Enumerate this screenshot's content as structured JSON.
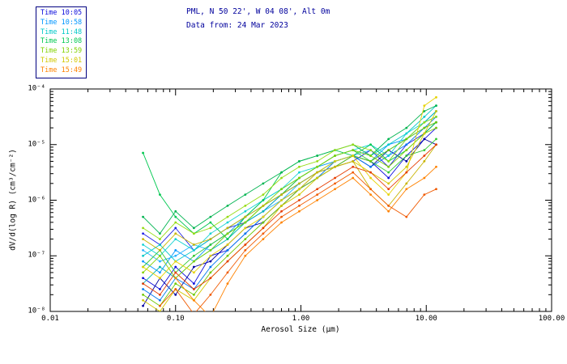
{
  "header": {
    "line1": "PML, N 50 22', W 04 08', Alt 0m",
    "line2": "Data from: 24 Mar 2023",
    "color": "#00009c"
  },
  "legend": {
    "entries": [
      {
        "label": "Time 10:05",
        "color": "#0a0adc"
      },
      {
        "label": "Time 10:58",
        "color": "#0096ff"
      },
      {
        "label": "Time 11:48",
        "color": "#00c8c8"
      },
      {
        "label": "Time 13:08",
        "color": "#00c850"
      },
      {
        "label": "Time 13:59",
        "color": "#82d200"
      },
      {
        "label": "Time 15:01",
        "color": "#d2c800"
      },
      {
        "label": "Time 15:49",
        "color": "#ff8200"
      }
    ]
  },
  "chart_data": {
    "type": "line",
    "title": "PML, N 50 22', W 04 08', Alt 0m",
    "subtitle": "Data from: 24 Mar 2023",
    "xlabel": "Aerosol Size (μm)",
    "ylabel": "dV/d(log R) (cm³/cm⁻²)",
    "x_scale": "log",
    "y_scale": "log",
    "xlim": [
      0.01,
      100.0
    ],
    "ylim": [
      1e-08,
      0.0001
    ],
    "x_tick_labels": [
      "0.01",
      "0.10",
      "1.00",
      "10.00",
      "100.00"
    ],
    "y_tick_labels": [
      "10⁻⁸",
      "10⁻⁷",
      "10⁻⁶",
      "10⁻⁵",
      "10⁻⁴"
    ],
    "grid": false,
    "legend_position": "top-left",
    "marker": "dot",
    "note": "y_log10 arrays give log10 of dV/d(log R); null = no sample at that size",
    "x": [
      0.055,
      0.075,
      0.1,
      0.14,
      0.19,
      0.26,
      0.36,
      0.5,
      0.7,
      0.97,
      1.35,
      1.87,
      2.6,
      3.6,
      5.0,
      6.95,
      9.65,
      12.0
    ],
    "series": [
      {
        "name": "Time 10:05 (1)",
        "time": "10:05",
        "color": "#0a0adc",
        "y_log10": [
          -7.4,
          -7.6,
          -7.2,
          -7.5,
          -7.0,
          -6.9,
          -6.6,
          -6.3,
          -6.0,
          -5.8,
          -5.6,
          -5.4,
          -5.2,
          -5.3,
          -5.6,
          -5.2,
          -4.9,
          -4.7
        ]
      },
      {
        "name": "Time 10:05 (2)",
        "time": "10:05",
        "color": "#2222e6",
        "y_log10": [
          -6.6,
          -6.8,
          -6.5,
          -6.9,
          -6.7,
          -6.5,
          -6.4,
          -6.2,
          -5.9,
          -5.7,
          -5.5,
          -5.4,
          -5.3,
          -5.1,
          -5.4,
          -5.0,
          -4.8,
          -4.6
        ]
      },
      {
        "name": "Time 10:05 (3)",
        "time": "10:05",
        "color": "#0000a0",
        "y_log10": [
          -7.9,
          -7.4,
          -7.7,
          -7.2,
          -7.1,
          -6.8,
          -6.5,
          -6.4,
          -6.1,
          -5.8,
          -5.5,
          -5.3,
          -5.2,
          -5.4,
          -5.1,
          -5.3,
          -4.9,
          -5.0
        ]
      },
      {
        "name": "Time 10:58 (1)",
        "time": "10:58",
        "color": "#0096ff",
        "y_log10": [
          -7.1,
          -7.3,
          -6.9,
          -7.1,
          -6.8,
          -6.6,
          -6.3,
          -6.1,
          -5.9,
          -5.6,
          -5.4,
          -5.3,
          -5.2,
          -5.3,
          -5.0,
          -4.9,
          -4.6,
          -4.4
        ]
      },
      {
        "name": "Time 10:58 (2)",
        "time": "10:58",
        "color": "#0078f0",
        "y_log10": [
          -7.6,
          -7.8,
          -7.4,
          -7.6,
          -7.2,
          -6.9,
          -6.6,
          -6.3,
          -6.0,
          -5.8,
          -5.6,
          -5.3,
          -5.2,
          -5.4,
          -5.2,
          -5.0,
          -4.7,
          -4.5
        ]
      },
      {
        "name": "Time 10:58 (3)",
        "time": "10:58",
        "color": "#28b4ff",
        "y_log10": [
          -6.9,
          -7.1,
          -7.0,
          -6.8,
          -6.9,
          -6.6,
          -6.4,
          -6.2,
          -6.0,
          -5.7,
          -5.5,
          -5.4,
          -5.2,
          -5.1,
          -5.3,
          -4.9,
          -4.7,
          -4.6
        ]
      },
      {
        "name": "Time 11:48 (1)",
        "time": "11:48",
        "color": "#00c8c8",
        "y_log10": [
          -7.0,
          -6.8,
          -7.1,
          -6.9,
          -6.7,
          -6.5,
          -6.3,
          -6.0,
          -5.8,
          -5.6,
          -5.4,
          -5.2,
          -5.1,
          -5.2,
          -5.0,
          -4.8,
          -4.5,
          -4.3
        ]
      },
      {
        "name": "Time 11:48 (2)",
        "time": "11:48",
        "color": "#00b4b4",
        "y_log10": [
          -7.5,
          -7.2,
          -7.4,
          -7.1,
          -6.9,
          -6.7,
          -6.4,
          -6.2,
          -5.9,
          -5.7,
          -5.5,
          -5.3,
          -5.2,
          -5.3,
          -5.1,
          -4.9,
          -4.6,
          -4.4
        ]
      },
      {
        "name": "Time 11:48 (3)",
        "time": "11:48",
        "color": "#14d2d2",
        "y_log10": [
          -6.8,
          -7.0,
          -6.7,
          -6.9,
          -6.6,
          -6.4,
          -6.2,
          -6.0,
          -5.8,
          -5.5,
          -5.4,
          -5.2,
          -5.1,
          -5.0,
          -5.2,
          -4.8,
          -4.6,
          -4.5
        ]
      },
      {
        "name": "Time 13:08 (1)",
        "time": "13:08",
        "color": "#00c850",
        "y_log10": [
          -5.15,
          -5.9,
          -6.3,
          -6.6,
          -6.4,
          -6.7,
          -6.3,
          -6.0,
          -5.5,
          -5.3,
          -5.2,
          -5.1,
          -5.2,
          -5.0,
          -5.3,
          -5.1,
          -4.8,
          -4.6
        ]
      },
      {
        "name": "Time 13:08 (2)",
        "time": "13:08",
        "color": "#00b450",
        "y_log10": [
          -6.3,
          -6.6,
          -6.2,
          -6.5,
          -6.3,
          -6.1,
          -5.9,
          -5.7,
          -5.5,
          -5.3,
          -5.2,
          -5.1,
          -5.0,
          -5.2,
          -4.9,
          -4.7,
          -4.4,
          -4.3
        ]
      },
      {
        "name": "Time 13:08 (3)",
        "time": "13:08",
        "color": "#32c832",
        "y_log10": [
          -7.2,
          -6.9,
          -7.3,
          -7.0,
          -6.8,
          -6.6,
          -6.4,
          -6.1,
          -5.9,
          -5.6,
          -5.4,
          -5.2,
          -5.1,
          -5.3,
          -5.5,
          -5.2,
          -5.1,
          -4.9
        ]
      },
      {
        "name": "Time 13:59 (1)",
        "time": "13:59",
        "color": "#82d200",
        "y_log10": [
          -7.3,
          -7.0,
          -7.4,
          -7.1,
          -6.9,
          -6.6,
          -6.4,
          -6.1,
          -5.8,
          -5.6,
          -5.4,
          -5.2,
          -5.1,
          -5.2,
          -5.4,
          -5.1,
          -4.8,
          -4.7
        ]
      },
      {
        "name": "Time 13:59 (2)",
        "time": "13:59",
        "color": "#96dc14",
        "y_log10": [
          -6.5,
          -6.7,
          -6.4,
          -6.6,
          -6.5,
          -6.3,
          -6.1,
          -5.9,
          -5.6,
          -5.4,
          -5.3,
          -5.1,
          -5.0,
          -5.1,
          -5.3,
          -4.9,
          -4.6,
          -4.5
        ]
      },
      {
        "name": "Time 13:59 (3)",
        "time": "13:59",
        "color": "#6ec800",
        "y_log10": [
          -7.7,
          -7.9,
          -7.5,
          -7.7,
          -7.3,
          -7.0,
          -6.7,
          -6.4,
          -6.1,
          -5.8,
          -5.6,
          -5.4,
          -5.2,
          -5.3,
          -5.1,
          -4.9,
          -4.7,
          -4.6
        ]
      },
      {
        "name": "Time 15:01 (1)",
        "time": "15:01",
        "color": "#d2c800",
        "y_log10": [
          -7.8,
          -8.0,
          -7.6,
          -7.8,
          -7.4,
          -7.1,
          -6.8,
          -6.5,
          -6.1,
          -5.9,
          -5.6,
          -5.4,
          -5.3,
          -5.5,
          -5.7,
          -5.4,
          -4.8,
          -4.4
        ]
      },
      {
        "name": "Time 15:01 (2)",
        "time": "15:01",
        "color": "#e6d200",
        "y_log10": [
          -7.2,
          -7.4,
          -7.1,
          -7.3,
          -7.0,
          -6.8,
          -6.5,
          -6.3,
          -6.0,
          -5.8,
          -5.5,
          -5.3,
          -5.2,
          -5.6,
          -5.9,
          -5.5,
          -4.3,
          -4.15
        ]
      },
      {
        "name": "Time 15:01 (3)",
        "time": "15:01",
        "color": "#c8b400",
        "y_log10": [
          -6.7,
          -6.9,
          -6.6,
          -6.8,
          -6.7,
          -6.5,
          -6.3,
          -6.1,
          -5.9,
          -5.7,
          -5.5,
          -5.4,
          -5.3,
          -5.8,
          -6.1,
          -5.7,
          -5.3,
          -5.0
        ]
      },
      {
        "name": "Time 15:49 (1)",
        "time": "15:49",
        "color": "#ff8200",
        "y_log10": [
          null,
          null,
          -7.4,
          -7.8,
          -8.1,
          -7.5,
          -7.0,
          -6.7,
          -6.4,
          -6.2,
          -6.0,
          -5.8,
          -5.6,
          -5.9,
          -6.2,
          -5.8,
          -5.6,
          -5.4
        ]
      },
      {
        "name": "Time 15:49 (2)",
        "time": "15:49",
        "color": "#f05a00",
        "y_log10": [
          null,
          -7.9,
          -7.6,
          -8.05,
          -7.7,
          -7.3,
          -6.9,
          -6.6,
          -6.3,
          -6.1,
          -5.9,
          -5.7,
          -5.5,
          -5.8,
          -6.1,
          -6.3,
          -5.9,
          -5.8
        ]
      },
      {
        "name": "Time 15:49 (3)",
        "time": "15:49",
        "color": "#e63c00",
        "y_log10": [
          -7.5,
          -7.7,
          -7.3,
          -7.6,
          -7.4,
          -7.1,
          -6.8,
          -6.5,
          -6.2,
          -6.0,
          -5.8,
          -5.6,
          -5.4,
          -5.5,
          -5.8,
          -5.5,
          -5.2,
          -5.0
        ]
      }
    ]
  }
}
